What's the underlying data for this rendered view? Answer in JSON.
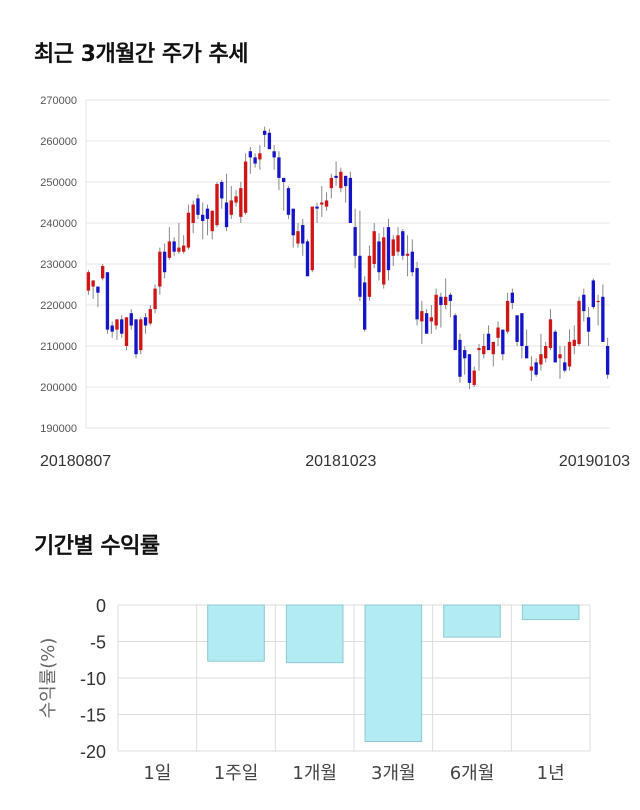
{
  "section1": {
    "title": "최근 3개월간 주가 추세"
  },
  "section2": {
    "title": "기간별 수익률"
  },
  "chart_data": [
    {
      "type": "candlestick",
      "title": "최근 3개월간 주가 추세",
      "ylim": [
        190000,
        270000
      ],
      "yticks": [
        190000,
        200000,
        210000,
        220000,
        230000,
        240000,
        250000,
        260000,
        270000
      ],
      "xticks": [
        {
          "label": "20180807",
          "index": 0
        },
        {
          "label": "20181023",
          "index": 53
        },
        {
          "label": "20190103",
          "index": 103
        }
      ],
      "colors": {
        "up": "#d01515",
        "down": "#1414c8",
        "grid": "#e6e6e6"
      },
      "candles": [
        [
          228500,
          222500,
          223500,
          228000
        ],
        [
          226000,
          221500,
          224500,
          226000
        ],
        [
          224500,
          219500,
          224500,
          223000
        ],
        [
          230000,
          226000,
          226500,
          229500
        ],
        [
          228000,
          213000,
          228000,
          214000
        ],
        [
          216000,
          212000,
          215000,
          213500
        ],
        [
          216500,
          211500,
          214000,
          216500
        ],
        [
          217500,
          212000,
          216500,
          213000
        ],
        [
          217000,
          209000,
          210000,
          217000
        ],
        [
          219000,
          214000,
          218000,
          215000
        ],
        [
          216500,
          207000,
          216500,
          208000
        ],
        [
          217000,
          208000,
          209000,
          216500
        ],
        [
          218000,
          213000,
          217000,
          215000
        ],
        [
          220000,
          215000,
          215500,
          219000
        ],
        [
          225000,
          218000,
          219000,
          224000
        ],
        [
          234000,
          222500,
          224500,
          233000
        ],
        [
          235000,
          226500,
          233000,
          228000
        ],
        [
          239000,
          231000,
          231500,
          235500
        ],
        [
          236500,
          232000,
          235500,
          233000
        ],
        [
          240000,
          232500,
          233000,
          234000
        ],
        [
          237000,
          232500,
          233000,
          234500
        ],
        [
          244500,
          233500,
          234000,
          242500
        ],
        [
          245500,
          237500,
          240000,
          244500
        ],
        [
          247000,
          241000,
          246000,
          242000
        ],
        [
          245000,
          236000,
          242000,
          240500
        ],
        [
          244500,
          237000,
          243500,
          241000
        ],
        [
          243000,
          236000,
          238000,
          243000
        ],
        [
          250000,
          239000,
          239500,
          249500
        ],
        [
          250500,
          243500,
          250000,
          246000
        ],
        [
          252000,
          238000,
          245000,
          239000
        ],
        [
          249000,
          241000,
          242000,
          245500
        ],
        [
          248000,
          244000,
          245000,
          246500
        ],
        [
          250000,
          240000,
          241500,
          248500
        ],
        [
          257000,
          242000,
          242500,
          255000
        ],
        [
          258500,
          252000,
          257500,
          256000
        ],
        [
          257000,
          253500,
          256000,
          254500
        ],
        [
          259000,
          253000,
          255500,
          257000
        ],
        [
          263500,
          258500,
          262500,
          261500
        ],
        [
          263000,
          258500,
          262000,
          258000
        ],
        [
          259000,
          253000,
          257500,
          256000
        ],
        [
          257500,
          248000,
          256000,
          251000
        ],
        [
          251000,
          243000,
          251000,
          250000
        ],
        [
          249000,
          241000,
          248500,
          242000
        ],
        [
          243000,
          234000,
          243500,
          237000
        ],
        [
          240000,
          234000,
          235000,
          238000
        ],
        [
          241000,
          232000,
          239500,
          235000
        ],
        [
          236000,
          228000,
          235500,
          227000
        ],
        [
          244000,
          228000,
          228500,
          244000
        ],
        [
          245000,
          240000,
          244000,
          243500
        ],
        [
          249000,
          241500,
          244500,
          245000
        ],
        [
          247500,
          243000,
          244000,
          245500
        ],
        [
          252000,
          246000,
          248500,
          251000
        ],
        [
          255000,
          249000,
          251500,
          251000
        ],
        [
          253500,
          247500,
          248500,
          252500
        ],
        [
          251500,
          245000,
          251500,
          249000
        ],
        [
          252500,
          240500,
          251000,
          240000
        ],
        [
          243500,
          229000,
          239000,
          232000
        ],
        [
          243000,
          221000,
          232000,
          222000
        ],
        [
          227000,
          213500,
          225500,
          214000
        ],
        [
          234500,
          221000,
          222000,
          232000
        ],
        [
          240000,
          229000,
          230000,
          238000
        ],
        [
          237500,
          226000,
          235500,
          228000
        ],
        [
          239000,
          224000,
          225000,
          236500
        ],
        [
          241000,
          226000,
          239000,
          228500
        ],
        [
          237000,
          229500,
          232000,
          236000
        ],
        [
          239000,
          232000,
          233000,
          237000
        ],
        [
          238500,
          231000,
          238000,
          232000
        ],
        [
          237000,
          227000,
          232000,
          232500
        ],
        [
          236000,
          227000,
          233000,
          228000
        ],
        [
          230500,
          215000,
          229000,
          216500
        ],
        [
          221000,
          210500,
          216000,
          218500
        ],
        [
          219000,
          213000,
          218000,
          213000
        ],
        [
          220000,
          213000,
          216000,
          217000
        ],
        [
          224000,
          214000,
          215000,
          222500
        ],
        [
          223000,
          214500,
          222000,
          220000
        ],
        [
          226500,
          219000,
          220000,
          222000
        ],
        [
          223000,
          217000,
          222500,
          221000
        ],
        [
          218000,
          209000,
          217500,
          209000
        ],
        [
          213000,
          201000,
          211500,
          202500
        ],
        [
          210000,
          203000,
          209000,
          207000
        ],
        [
          208000,
          199500,
          208000,
          201000
        ],
        [
          205000,
          200000,
          200500,
          204000
        ],
        [
          210500,
          204000,
          209000,
          209500
        ],
        [
          213000,
          207000,
          208000,
          210000
        ],
        [
          215000,
          209500,
          213000,
          209000
        ],
        [
          211000,
          205000,
          208000,
          211000
        ],
        [
          216000,
          210000,
          212000,
          214500
        ],
        [
          213000,
          206500,
          214000,
          208000
        ],
        [
          223000,
          213000,
          213500,
          221000
        ],
        [
          224000,
          219000,
          223000,
          220500
        ],
        [
          217000,
          210000,
          217500,
          211000
        ],
        [
          218000,
          207000,
          218000,
          210000
        ],
        [
          214000,
          207000,
          210000,
          207000
        ],
        [
          207500,
          201500,
          204000,
          205000
        ],
        [
          207000,
          202500,
          206000,
          203000
        ],
        [
          213000,
          204000,
          205500,
          208000
        ],
        [
          211000,
          206000,
          207000,
          210000
        ],
        [
          219000,
          209000,
          209500,
          216500
        ],
        [
          214000,
          206000,
          213500,
          206000
        ],
        [
          210000,
          202000,
          207000,
          208000
        ],
        [
          210000,
          203500,
          206000,
          204000
        ],
        [
          214000,
          204000,
          205000,
          211000
        ],
        [
          215000,
          208000,
          210000,
          211500
        ],
        [
          222000,
          210000,
          210500,
          221000
        ],
        [
          224000,
          216000,
          222500,
          218500
        ],
        [
          219500,
          210000,
          217000,
          213500
        ],
        [
          226500,
          219000,
          226000,
          219500
        ],
        [
          222500,
          215000,
          221000,
          221000
        ],
        [
          225000,
          211000,
          222000,
          211000
        ],
        [
          212000,
          202000,
          210000,
          203000
        ]
      ]
    },
    {
      "type": "bar",
      "title": "기간별 수익률",
      "ylabel": "수익률(%)",
      "ylim": [
        -20,
        0
      ],
      "yticks": [
        0,
        -5,
        -10,
        -15,
        -20
      ],
      "categories": [
        "1일",
        "1주일",
        "1개월",
        "3개월",
        "6개월",
        "1년"
      ],
      "values": [
        0,
        -7.7,
        -7.9,
        -18.7,
        -4.4,
        -2.0
      ],
      "colors": {
        "bar": "#b2ebf2",
        "bar_stroke": "#90c8d2",
        "grid": "#dddddd"
      }
    }
  ]
}
